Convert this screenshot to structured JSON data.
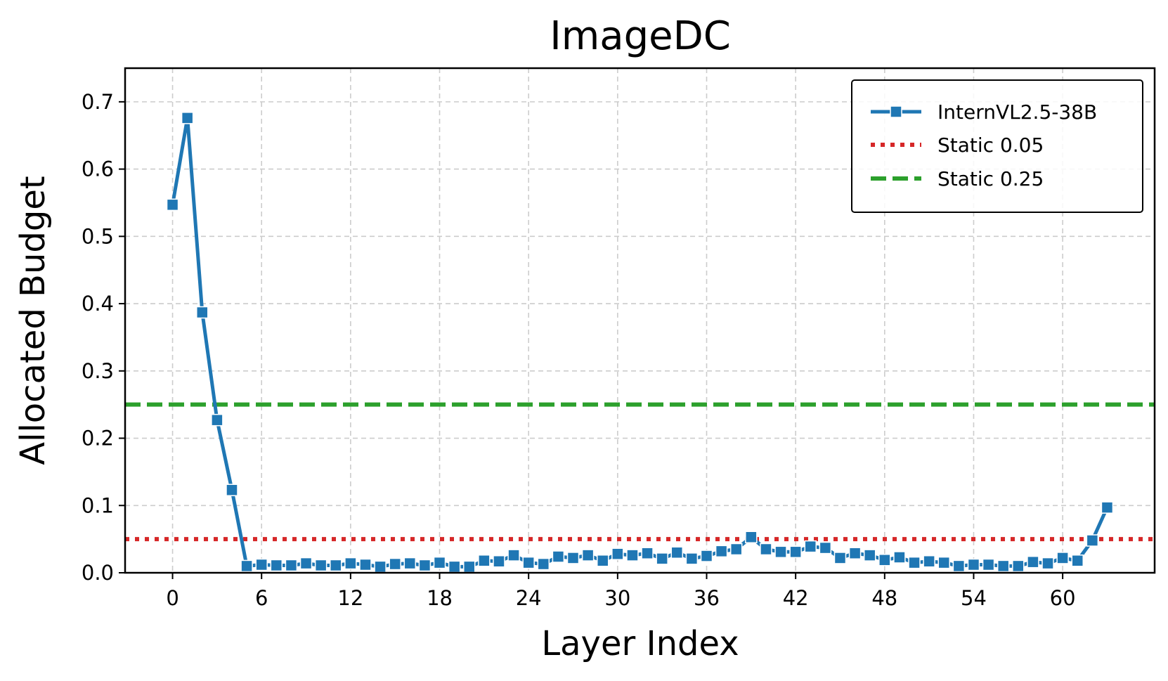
{
  "chart_data": {
    "type": "line",
    "title": "ImageDC",
    "xlabel": "Layer Index",
    "ylabel": "Allocated Budget",
    "xlim": [
      -3.2,
      66.2
    ],
    "ylim": [
      0.0,
      0.75
    ],
    "xticks": [
      0,
      6,
      12,
      18,
      24,
      30,
      36,
      42,
      48,
      54,
      60
    ],
    "xtick_labels": [
      "0",
      "6",
      "12",
      "18",
      "24",
      "30",
      "36",
      "42",
      "48",
      "54",
      "60"
    ],
    "yticks": [
      0.0,
      0.1,
      0.2,
      0.3,
      0.4,
      0.5,
      0.6,
      0.7
    ],
    "ytick_labels": [
      "0.0",
      "0.1",
      "0.2",
      "0.3",
      "0.4",
      "0.5",
      "0.6",
      "0.7"
    ],
    "grid": true,
    "legend_position": "top-right",
    "series": [
      {
        "name": "InternVL2.5-38B",
        "color": "#1f77b4",
        "marker": "square",
        "x": [
          0,
          1,
          2,
          3,
          4,
          5,
          6,
          7,
          8,
          9,
          10,
          11,
          12,
          13,
          14,
          15,
          16,
          17,
          18,
          19,
          20,
          21,
          22,
          23,
          24,
          25,
          26,
          27,
          28,
          29,
          30,
          31,
          32,
          33,
          34,
          35,
          36,
          37,
          38,
          39,
          40,
          41,
          42,
          43,
          44,
          45,
          46,
          47,
          48,
          49,
          50,
          51,
          52,
          53,
          54,
          55,
          56,
          57,
          58,
          59,
          60,
          61,
          62,
          63
        ],
        "values": [
          0.547,
          0.676,
          0.387,
          0.227,
          0.123,
          0.01,
          0.012,
          0.011,
          0.011,
          0.014,
          0.011,
          0.011,
          0.014,
          0.012,
          0.009,
          0.013,
          0.014,
          0.011,
          0.015,
          0.009,
          0.009,
          0.018,
          0.017,
          0.026,
          0.015,
          0.013,
          0.024,
          0.022,
          0.026,
          0.018,
          0.028,
          0.026,
          0.029,
          0.021,
          0.03,
          0.021,
          0.025,
          0.032,
          0.035,
          0.053,
          0.035,
          0.031,
          0.031,
          0.039,
          0.037,
          0.022,
          0.029,
          0.026,
          0.019,
          0.023,
          0.015,
          0.017,
          0.015,
          0.01,
          0.012,
          0.012,
          0.01,
          0.01,
          0.016,
          0.014,
          0.022,
          0.018,
          0.048,
          0.097
        ]
      },
      {
        "name": "Static 0.05",
        "color": "#d62728",
        "style": "dotted",
        "constant": 0.05
      },
      {
        "name": "Static 0.25",
        "color": "#2ca02c",
        "style": "dashed",
        "constant": 0.25
      }
    ]
  }
}
